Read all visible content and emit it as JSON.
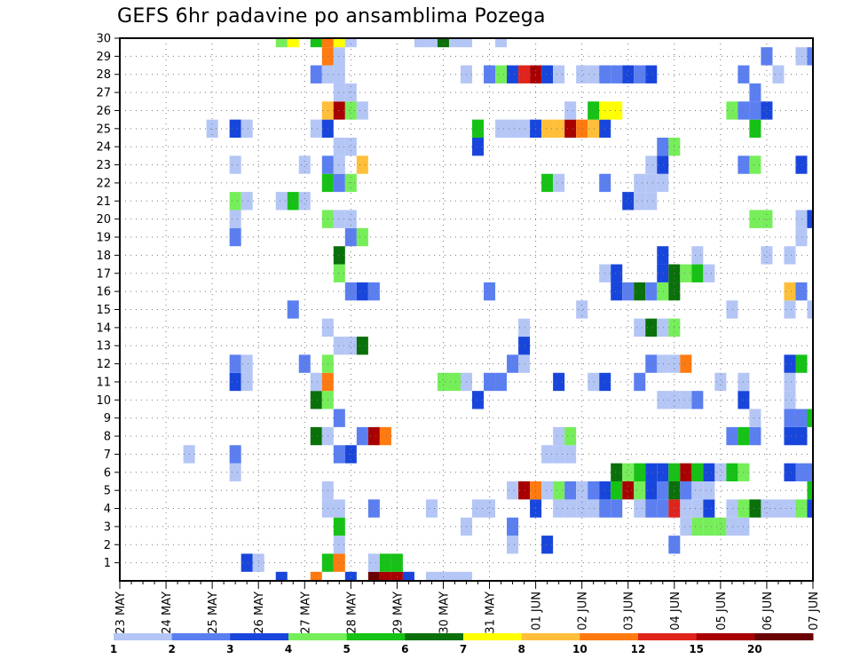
{
  "chart_data": {
    "type": "heatmap",
    "title": "GEFS 6hr padavine po ansamblima Pozega",
    "xlabel": "",
    "ylabel": "",
    "x_ticks": [
      "23 MAY",
      "24 MAY",
      "25 MAY",
      "26 MAY",
      "27 MAY",
      "28 MAY",
      "29 MAY",
      "30 MAY",
      "31 MAY",
      "01 JUN",
      "02 JUN",
      "03 JUN",
      "04 JUN",
      "05 JUN",
      "06 JUN",
      "07 JUN"
    ],
    "y_ticks": [
      1,
      2,
      3,
      4,
      5,
      6,
      7,
      8,
      9,
      10,
      11,
      12,
      13,
      14,
      15,
      16,
      17,
      18,
      19,
      20,
      21,
      22,
      23,
      24,
      25,
      26,
      27,
      28,
      29,
      30
    ],
    "x_step_hours": 6,
    "steps_per_day": 4,
    "n_steps": 61,
    "n_members": 31,
    "grid": true,
    "legend_position": "bottom",
    "color_scale": {
      "labels": [
        "1",
        "2",
        "3",
        "4",
        "5",
        "6",
        "7",
        "8",
        "10",
        "12",
        "15",
        "20"
      ],
      "colors": [
        "#b4c6f5",
        "#5b7ff0",
        "#1846dc",
        "#76ee5a",
        "#15c215",
        "#0a700a",
        "#ffff00",
        "#ffbf3a",
        "#ff7a10",
        "#e0241c",
        "#a80000",
        "#6a0000"
      ]
    },
    "cells": [
      [
        0,
        14,
        3
      ],
      [
        0,
        17,
        9
      ],
      [
        0,
        20,
        3
      ],
      [
        0,
        22,
        12
      ],
      [
        0,
        23,
        11
      ],
      [
        0,
        24,
        11
      ],
      [
        0,
        25,
        3
      ],
      [
        0,
        27,
        1
      ],
      [
        0,
        28,
        1
      ],
      [
        0,
        29,
        1
      ],
      [
        0,
        30,
        1
      ],
      [
        1,
        11,
        3
      ],
      [
        1,
        12,
        1
      ],
      [
        1,
        18,
        5
      ],
      [
        1,
        19,
        9
      ],
      [
        1,
        22,
        1
      ],
      [
        1,
        23,
        5
      ],
      [
        1,
        24,
        5
      ],
      [
        2,
        19,
        1
      ],
      [
        2,
        34,
        1
      ],
      [
        2,
        37,
        3
      ],
      [
        2,
        48,
        2
      ],
      [
        3,
        19,
        5
      ],
      [
        3,
        30,
        1
      ],
      [
        3,
        34,
        2
      ],
      [
        3,
        49,
        1
      ],
      [
        3,
        50,
        4
      ],
      [
        3,
        51,
        4
      ],
      [
        3,
        52,
        4
      ],
      [
        3,
        53,
        1
      ],
      [
        3,
        54,
        1
      ],
      [
        4,
        18,
        1
      ],
      [
        4,
        19,
        1
      ],
      [
        4,
        22,
        2
      ],
      [
        4,
        27,
        1
      ],
      [
        4,
        31,
        1
      ],
      [
        4,
        32,
        1
      ],
      [
        4,
        36,
        3
      ],
      [
        4,
        38,
        1
      ],
      [
        4,
        39,
        1
      ],
      [
        4,
        40,
        1
      ],
      [
        4,
        41,
        1
      ],
      [
        4,
        42,
        2
      ],
      [
        4,
        43,
        2
      ],
      [
        4,
        45,
        1
      ],
      [
        4,
        46,
        2
      ],
      [
        4,
        47,
        2
      ],
      [
        4,
        48,
        10
      ],
      [
        4,
        49,
        1
      ],
      [
        4,
        50,
        1
      ],
      [
        4,
        51,
        3
      ],
      [
        4,
        53,
        1
      ],
      [
        4,
        54,
        4
      ],
      [
        4,
        55,
        6
      ],
      [
        4,
        56,
        1
      ],
      [
        4,
        57,
        1
      ],
      [
        4,
        58,
        1
      ],
      [
        4,
        59,
        4
      ],
      [
        4,
        60,
        3
      ],
      [
        5,
        18,
        1
      ],
      [
        5,
        34,
        1
      ],
      [
        5,
        35,
        11
      ],
      [
        5,
        36,
        9
      ],
      [
        5,
        37,
        1
      ],
      [
        5,
        38,
        4
      ],
      [
        5,
        39,
        2
      ],
      [
        5,
        40,
        1
      ],
      [
        5,
        41,
        2
      ],
      [
        5,
        42,
        3
      ],
      [
        5,
        43,
        5
      ],
      [
        5,
        44,
        11
      ],
      [
        5,
        45,
        4
      ],
      [
        5,
        46,
        3
      ],
      [
        5,
        47,
        2
      ],
      [
        5,
        48,
        6
      ],
      [
        5,
        49,
        2
      ],
      [
        5,
        50,
        1
      ],
      [
        5,
        51,
        1
      ],
      [
        5,
        60,
        5
      ],
      [
        6,
        10,
        1
      ],
      [
        6,
        43,
        6
      ],
      [
        6,
        44,
        4
      ],
      [
        6,
        45,
        5
      ],
      [
        6,
        46,
        3
      ],
      [
        6,
        47,
        3
      ],
      [
        6,
        48,
        5
      ],
      [
        6,
        49,
        11
      ],
      [
        6,
        50,
        5
      ],
      [
        6,
        51,
        3
      ],
      [
        6,
        52,
        1
      ],
      [
        6,
        53,
        5
      ],
      [
        6,
        54,
        4
      ],
      [
        6,
        58,
        3
      ],
      [
        6,
        59,
        2
      ],
      [
        6,
        60,
        2
      ],
      [
        7,
        6,
        1
      ],
      [
        7,
        10,
        2
      ],
      [
        7,
        19,
        2
      ],
      [
        7,
        20,
        3
      ],
      [
        7,
        37,
        1
      ],
      [
        7,
        38,
        1
      ],
      [
        7,
        39,
        1
      ],
      [
        8,
        17,
        6
      ],
      [
        8,
        18,
        1
      ],
      [
        8,
        21,
        2
      ],
      [
        8,
        22,
        11
      ],
      [
        8,
        23,
        9
      ],
      [
        8,
        38,
        1
      ],
      [
        8,
        39,
        4
      ],
      [
        8,
        53,
        2
      ],
      [
        8,
        54,
        5
      ],
      [
        8,
        55,
        2
      ],
      [
        8,
        58,
        3
      ],
      [
        8,
        59,
        3
      ],
      [
        9,
        19,
        2
      ],
      [
        9,
        55,
        1
      ],
      [
        9,
        58,
        2
      ],
      [
        9,
        59,
        2
      ],
      [
        9,
        60,
        5
      ],
      [
        10,
        17,
        6
      ],
      [
        10,
        18,
        4
      ],
      [
        10,
        31,
        3
      ],
      [
        10,
        47,
        1
      ],
      [
        10,
        48,
        1
      ],
      [
        10,
        49,
        1
      ],
      [
        10,
        50,
        2
      ],
      [
        10,
        54,
        3
      ],
      [
        10,
        58,
        1
      ],
      [
        11,
        10,
        3
      ],
      [
        11,
        11,
        1
      ],
      [
        11,
        17,
        1
      ],
      [
        11,
        18,
        9
      ],
      [
        11,
        28,
        4
      ],
      [
        11,
        29,
        4
      ],
      [
        11,
        30,
        1
      ],
      [
        11,
        32,
        2
      ],
      [
        11,
        33,
        2
      ],
      [
        11,
        38,
        3
      ],
      [
        11,
        41,
        1
      ],
      [
        11,
        42,
        3
      ],
      [
        11,
        45,
        2
      ],
      [
        11,
        52,
        1
      ],
      [
        11,
        54,
        1
      ],
      [
        11,
        58,
        1
      ],
      [
        12,
        10,
        2
      ],
      [
        12,
        11,
        1
      ],
      [
        12,
        16,
        2
      ],
      [
        12,
        18,
        4
      ],
      [
        12,
        34,
        2
      ],
      [
        12,
        35,
        1
      ],
      [
        12,
        46,
        2
      ],
      [
        12,
        47,
        1
      ],
      [
        12,
        48,
        1
      ],
      [
        12,
        49,
        9
      ],
      [
        12,
        58,
        3
      ],
      [
        12,
        59,
        5
      ],
      [
        13,
        19,
        1
      ],
      [
        13,
        20,
        1
      ],
      [
        13,
        21,
        6
      ],
      [
        13,
        35,
        3
      ],
      [
        14,
        18,
        1
      ],
      [
        14,
        35,
        1
      ],
      [
        14,
        45,
        1
      ],
      [
        14,
        46,
        6
      ],
      [
        14,
        47,
        1
      ],
      [
        14,
        48,
        4
      ],
      [
        15,
        15,
        2
      ],
      [
        15,
        40,
        1
      ],
      [
        15,
        53,
        1
      ],
      [
        15,
        58,
        1
      ],
      [
        15,
        60,
        1
      ],
      [
        16,
        20,
        2
      ],
      [
        16,
        21,
        3
      ],
      [
        16,
        22,
        2
      ],
      [
        16,
        32,
        2
      ],
      [
        16,
        43,
        3
      ],
      [
        16,
        44,
        2
      ],
      [
        16,
        45,
        6
      ],
      [
        16,
        46,
        2
      ],
      [
        16,
        47,
        4
      ],
      [
        16,
        48,
        6
      ],
      [
        16,
        58,
        8
      ],
      [
        16,
        59,
        2
      ],
      [
        17,
        19,
        4
      ],
      [
        17,
        42,
        1
      ],
      [
        17,
        43,
        3
      ],
      [
        17,
        47,
        3
      ],
      [
        17,
        48,
        6
      ],
      [
        17,
        49,
        4
      ],
      [
        17,
        50,
        5
      ],
      [
        17,
        51,
        1
      ],
      [
        18,
        19,
        6
      ],
      [
        18,
        47,
        3
      ],
      [
        18,
        50,
        1
      ],
      [
        18,
        56,
        1
      ],
      [
        18,
        58,
        1
      ],
      [
        19,
        10,
        2
      ],
      [
        19,
        20,
        2
      ],
      [
        19,
        21,
        4
      ],
      [
        19,
        59,
        1
      ],
      [
        20,
        10,
        1
      ],
      [
        20,
        18,
        4
      ],
      [
        20,
        19,
        1
      ],
      [
        20,
        20,
        1
      ],
      [
        20,
        55,
        4
      ],
      [
        20,
        56,
        4
      ],
      [
        20,
        59,
        1
      ],
      [
        20,
        60,
        3
      ],
      [
        21,
        10,
        4
      ],
      [
        21,
        11,
        1
      ],
      [
        21,
        14,
        1
      ],
      [
        21,
        15,
        5
      ],
      [
        21,
        16,
        1
      ],
      [
        21,
        44,
        3
      ],
      [
        21,
        45,
        1
      ],
      [
        21,
        46,
        1
      ],
      [
        22,
        18,
        5
      ],
      [
        22,
        19,
        2
      ],
      [
        22,
        20,
        4
      ],
      [
        22,
        37,
        5
      ],
      [
        22,
        38,
        1
      ],
      [
        22,
        42,
        2
      ],
      [
        22,
        45,
        1
      ],
      [
        22,
        46,
        1
      ],
      [
        22,
        47,
        1
      ],
      [
        23,
        10,
        1
      ],
      [
        23,
        16,
        1
      ],
      [
        23,
        18,
        2
      ],
      [
        23,
        19,
        1
      ],
      [
        23,
        21,
        8
      ],
      [
        23,
        46,
        1
      ],
      [
        23,
        47,
        3
      ],
      [
        23,
        54,
        2
      ],
      [
        23,
        55,
        4
      ],
      [
        23,
        59,
        3
      ],
      [
        24,
        19,
        1
      ],
      [
        24,
        20,
        1
      ],
      [
        24,
        31,
        3
      ],
      [
        24,
        47,
        2
      ],
      [
        24,
        48,
        4
      ],
      [
        25,
        8,
        1
      ],
      [
        25,
        10,
        3
      ],
      [
        25,
        11,
        1
      ],
      [
        25,
        17,
        1
      ],
      [
        25,
        18,
        3
      ],
      [
        25,
        31,
        5
      ],
      [
        25,
        33,
        1
      ],
      [
        25,
        34,
        1
      ],
      [
        25,
        35,
        1
      ],
      [
        25,
        36,
        3
      ],
      [
        25,
        37,
        8
      ],
      [
        25,
        38,
        8
      ],
      [
        25,
        39,
        11
      ],
      [
        25,
        40,
        9
      ],
      [
        25,
        41,
        8
      ],
      [
        25,
        42,
        3
      ],
      [
        25,
        55,
        5
      ],
      [
        26,
        18,
        8
      ],
      [
        26,
        19,
        11
      ],
      [
        26,
        20,
        4
      ],
      [
        26,
        21,
        1
      ],
      [
        26,
        39,
        1
      ],
      [
        26,
        41,
        5
      ],
      [
        26,
        42,
        7
      ],
      [
        26,
        43,
        7
      ],
      [
        26,
        53,
        4
      ],
      [
        26,
        54,
        2
      ],
      [
        26,
        55,
        2
      ],
      [
        26,
        56,
        3
      ],
      [
        27,
        19,
        1
      ],
      [
        27,
        20,
        1
      ],
      [
        27,
        55,
        2
      ],
      [
        28,
        17,
        2
      ],
      [
        28,
        18,
        1
      ],
      [
        28,
        19,
        1
      ],
      [
        28,
        30,
        1
      ],
      [
        28,
        32,
        2
      ],
      [
        28,
        33,
        4
      ],
      [
        28,
        34,
        3
      ],
      [
        28,
        35,
        10
      ],
      [
        28,
        36,
        11
      ],
      [
        28,
        37,
        3
      ],
      [
        28,
        38,
        1
      ],
      [
        28,
        40,
        1
      ],
      [
        28,
        41,
        1
      ],
      [
        28,
        42,
        2
      ],
      [
        28,
        43,
        2
      ],
      [
        28,
        44,
        3
      ],
      [
        28,
        45,
        2
      ],
      [
        28,
        46,
        3
      ],
      [
        28,
        54,
        2
      ],
      [
        28,
        57,
        1
      ],
      [
        29,
        18,
        9
      ],
      [
        29,
        19,
        1
      ],
      [
        29,
        56,
        2
      ],
      [
        29,
        59,
        1
      ],
      [
        29,
        60,
        2
      ],
      [
        30,
        14,
        4
      ],
      [
        30,
        15,
        7
      ],
      [
        30,
        17,
        5
      ],
      [
        30,
        18,
        9
      ],
      [
        30,
        19,
        7
      ],
      [
        30,
        20,
        1
      ],
      [
        30,
        26,
        1
      ],
      [
        30,
        27,
        1
      ],
      [
        30,
        28,
        6
      ],
      [
        30,
        29,
        1
      ],
      [
        30,
        30,
        1
      ],
      [
        30,
        33,
        1
      ]
    ]
  }
}
